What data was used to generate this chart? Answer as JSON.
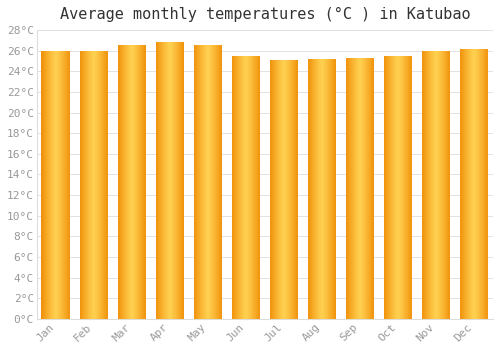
{
  "title": "Average monthly temperatures (°C ) in Katubao",
  "months": [
    "Jan",
    "Feb",
    "Mar",
    "Apr",
    "May",
    "Jun",
    "Jul",
    "Aug",
    "Sep",
    "Oct",
    "Nov",
    "Dec"
  ],
  "values": [
    26.0,
    26.0,
    26.6,
    26.8,
    26.6,
    25.5,
    25.1,
    25.2,
    25.3,
    25.5,
    26.0,
    26.2
  ],
  "bar_color_center": "#FFD050",
  "bar_color_edge": "#F0900A",
  "background_color": "#FFFFFF",
  "grid_color": "#DDDDDD",
  "ylim": [
    0,
    28
  ],
  "ytick_step": 2,
  "title_fontsize": 11,
  "tick_fontsize": 8,
  "tick_color": "#999999",
  "bar_width": 0.75
}
